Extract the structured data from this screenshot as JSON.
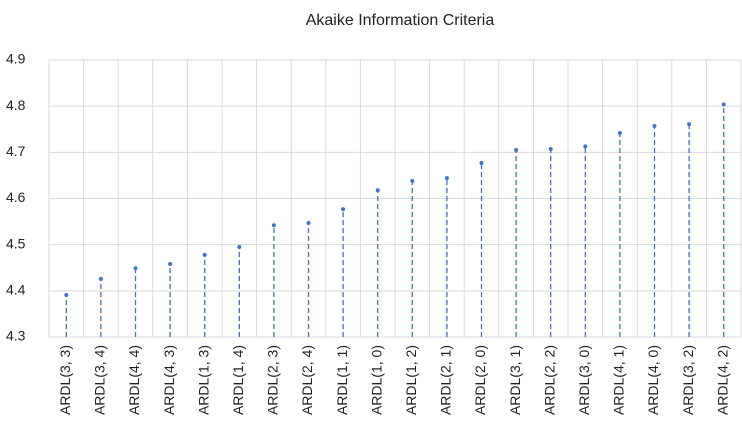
{
  "chart_data": {
    "type": "stem",
    "title": "Akaike Information Criteria",
    "categories": [
      "ARDL(3, 3)",
      "ARDL(3, 4)",
      "ARDL(4, 4)",
      "ARDL(4, 3)",
      "ARDL(1, 3)",
      "ARDL(1, 4)",
      "ARDL(2, 3)",
      "ARDL(2, 4)",
      "ARDL(1, 1)",
      "ARDL(1, 0)",
      "ARDL(1, 2)",
      "ARDL(2, 1)",
      "ARDL(2, 0)",
      "ARDL(3, 1)",
      "ARDL(2, 2)",
      "ARDL(3, 0)",
      "ARDL(4, 1)",
      "ARDL(4, 0)",
      "ARDL(3, 2)",
      "ARDL(4, 2)"
    ],
    "values": [
      4.391,
      4.426,
      4.449,
      4.458,
      4.478,
      4.495,
      4.542,
      4.547,
      4.577,
      4.618,
      4.638,
      4.644,
      4.677,
      4.705,
      4.707,
      4.713,
      4.742,
      4.757,
      4.761,
      4.804
    ],
    "color": "#4472c4",
    "ylim": [
      4.3,
      4.9
    ],
    "yticks": [
      4.3,
      4.4,
      4.5,
      4.6,
      4.7,
      4.8,
      4.9
    ],
    "grid": true
  }
}
